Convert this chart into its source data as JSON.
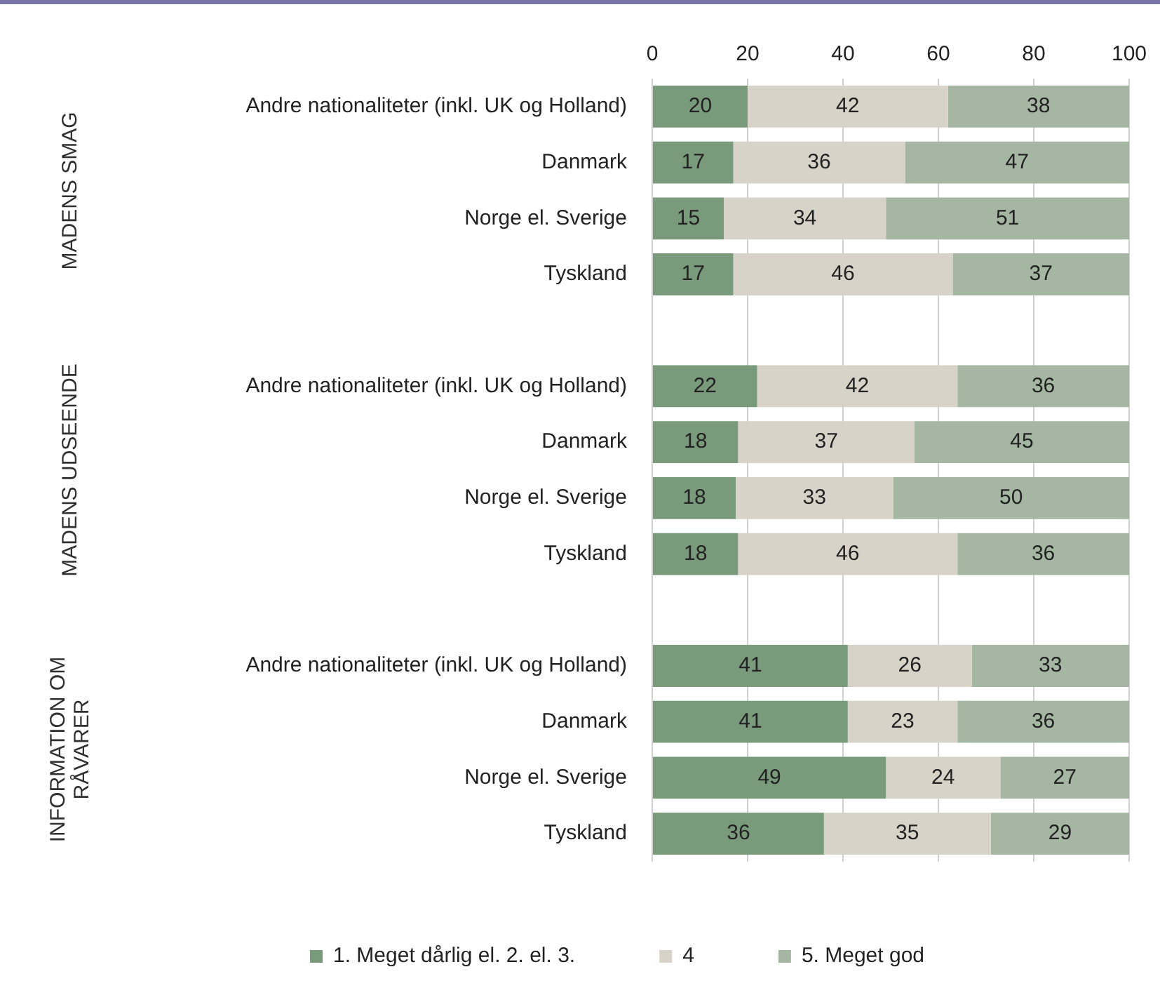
{
  "chart_data": {
    "type": "bar",
    "orientation": "horizontal",
    "stacked": true,
    "categories": [
      "Andre nationaliteter (inkl. UK og Holland)",
      "Danmark",
      "Norge el. Sverige",
      "Tyskland",
      null,
      "Andre nationaliteter (inkl. UK og Holland)",
      "Danmark",
      "Norge el. Sverige",
      "Tyskland",
      null,
      "Andre nationaliteter (inkl. UK og Holland)",
      "Danmark",
      "Norge el. Sverige",
      "Tyskland"
    ],
    "series": [
      {
        "name": "1. Meget dårlig el. 2. el. 3.",
        "color": "#7a9a7c",
        "values": [
          20,
          17,
          15,
          17,
          null,
          22,
          18,
          17.5,
          18,
          null,
          41,
          41,
          49,
          36
        ],
        "value_labels": [
          "20",
          "17",
          "15",
          "17",
          null,
          "22",
          "18",
          "18",
          "18",
          null,
          "41",
          "41",
          "49",
          "36"
        ]
      },
      {
        "name": "4",
        "color": "#d7d3c9",
        "values": [
          42,
          36,
          34,
          46,
          null,
          42,
          37,
          33,
          46,
          null,
          26,
          23,
          24,
          35
        ],
        "value_labels": [
          "42",
          "36",
          "34",
          "46",
          null,
          "42",
          "37",
          "33",
          "46",
          null,
          "26",
          "23",
          "24",
          "35"
        ]
      },
      {
        "name": "5. Meget god",
        "color": "#a5b7a3",
        "values": [
          38,
          47,
          51,
          37,
          null,
          36,
          45,
          49.5,
          36,
          null,
          33,
          36,
          27,
          29
        ],
        "value_labels": [
          "38",
          "47",
          "51",
          "37",
          null,
          "36",
          "45",
          "50",
          "36",
          null,
          "33",
          "36",
          "27",
          "29"
        ]
      }
    ],
    "xlim": [
      0,
      100
    ],
    "xticks": [
      0,
      20,
      40,
      60,
      80,
      100
    ],
    "grid": "x",
    "legend": "bottom",
    "annotations": [
      "MADENS SMAG",
      "MADENS UDSEENDE",
      "INFORMATION OM RÅVARER"
    ]
  }
}
